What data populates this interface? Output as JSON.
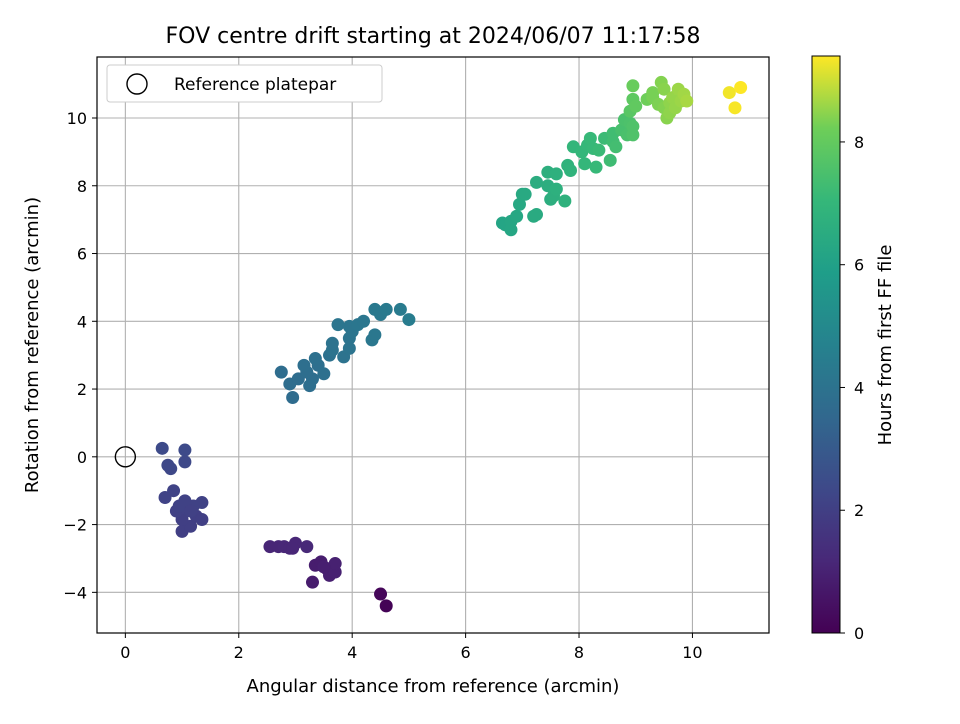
{
  "chart_data": {
    "type": "scatter",
    "title": "FOV centre drift starting at 2024/06/07 11:17:58",
    "xlabel": "Angular distance from reference (arcmin)",
    "ylabel": "Rotation from reference (arcmin)",
    "xlim": [
      -0.5,
      11.35
    ],
    "ylim": [
      -5.2,
      11.8
    ],
    "xticks": [
      0,
      2,
      4,
      6,
      8,
      10
    ],
    "yticks": [
      -4,
      -2,
      0,
      2,
      4,
      6,
      8,
      10
    ],
    "grid": true,
    "colormap": "viridis",
    "colorbar": {
      "label": "Hours from first FF file",
      "range": [
        0,
        9.4
      ],
      "ticks": [
        0,
        2,
        4,
        6,
        8
      ]
    },
    "legend": {
      "placement": "top-left",
      "entries": [
        {
          "label": "Reference platepar",
          "marker": "open-circle",
          "x": 0,
          "y": 0
        }
      ]
    },
    "points": [
      {
        "x": 4.6,
        "y": -4.4,
        "c": 0.05
      },
      {
        "x": 4.5,
        "y": -4.05,
        "c": 0.15
      },
      {
        "x": 3.3,
        "y": -3.7,
        "c": 0.8
      },
      {
        "x": 3.35,
        "y": -3.2,
        "c": 0.85
      },
      {
        "x": 3.45,
        "y": -3.1,
        "c": 0.85
      },
      {
        "x": 3.55,
        "y": -3.3,
        "c": 0.9
      },
      {
        "x": 3.6,
        "y": -3.5,
        "c": 0.9
      },
      {
        "x": 3.7,
        "y": -3.4,
        "c": 0.95
      },
      {
        "x": 3.7,
        "y": -3.15,
        "c": 0.95
      },
      {
        "x": 3.5,
        "y": -3.25,
        "c": 0.9
      },
      {
        "x": 2.55,
        "y": -2.65,
        "c": 1.1
      },
      {
        "x": 2.7,
        "y": -2.65,
        "c": 1.1
      },
      {
        "x": 2.8,
        "y": -2.65,
        "c": 1.15
      },
      {
        "x": 2.9,
        "y": -2.7,
        "c": 1.15
      },
      {
        "x": 3.0,
        "y": -2.55,
        "c": 1.15
      },
      {
        "x": 2.95,
        "y": -2.7,
        "c": 1.15
      },
      {
        "x": 3.2,
        "y": -2.65,
        "c": 1.2
      },
      {
        "x": 1.0,
        "y": -2.2,
        "c": 2.0
      },
      {
        "x": 1.15,
        "y": -2.05,
        "c": 2.0
      },
      {
        "x": 1.0,
        "y": -1.85,
        "c": 2.0
      },
      {
        "x": 1.25,
        "y": -1.75,
        "c": 2.0
      },
      {
        "x": 1.35,
        "y": -1.85,
        "c": 2.0
      },
      {
        "x": 0.9,
        "y": -1.6,
        "c": 2.05
      },
      {
        "x": 1.1,
        "y": -1.55,
        "c": 2.05
      },
      {
        "x": 1.2,
        "y": -1.45,
        "c": 2.1
      },
      {
        "x": 0.95,
        "y": -1.45,
        "c": 2.1
      },
      {
        "x": 1.05,
        "y": -1.3,
        "c": 2.1
      },
      {
        "x": 1.35,
        "y": -1.35,
        "c": 2.1
      },
      {
        "x": 0.7,
        "y": -1.2,
        "c": 2.15
      },
      {
        "x": 0.85,
        "y": -1.0,
        "c": 2.15
      },
      {
        "x": 1.15,
        "y": -1.6,
        "c": 2.05
      },
      {
        "x": 0.75,
        "y": -0.25,
        "c": 2.3
      },
      {
        "x": 0.8,
        "y": -0.35,
        "c": 2.3
      },
      {
        "x": 1.05,
        "y": -0.15,
        "c": 2.35
      },
      {
        "x": 0.65,
        "y": 0.25,
        "c": 2.4
      },
      {
        "x": 1.05,
        "y": 0.2,
        "c": 2.4
      },
      {
        "x": 2.95,
        "y": 1.75,
        "c": 3.7
      },
      {
        "x": 2.9,
        "y": 2.15,
        "c": 3.75
      },
      {
        "x": 3.05,
        "y": 2.3,
        "c": 3.75
      },
      {
        "x": 2.75,
        "y": 2.5,
        "c": 3.75
      },
      {
        "x": 3.25,
        "y": 2.1,
        "c": 3.8
      },
      {
        "x": 3.3,
        "y": 2.3,
        "c": 3.8
      },
      {
        "x": 3.2,
        "y": 2.5,
        "c": 3.8
      },
      {
        "x": 3.15,
        "y": 2.7,
        "c": 3.85
      },
      {
        "x": 3.4,
        "y": 2.7,
        "c": 3.85
      },
      {
        "x": 3.35,
        "y": 2.9,
        "c": 3.9
      },
      {
        "x": 3.5,
        "y": 2.45,
        "c": 3.9
      },
      {
        "x": 3.6,
        "y": 3.0,
        "c": 3.95
      },
      {
        "x": 3.65,
        "y": 3.15,
        "c": 4.0
      },
      {
        "x": 3.65,
        "y": 3.35,
        "c": 4.0
      },
      {
        "x": 3.85,
        "y": 2.95,
        "c": 4.0
      },
      {
        "x": 3.95,
        "y": 3.2,
        "c": 4.05
      },
      {
        "x": 3.95,
        "y": 3.5,
        "c": 4.05
      },
      {
        "x": 4.0,
        "y": 3.7,
        "c": 4.1
      },
      {
        "x": 3.95,
        "y": 3.85,
        "c": 4.1
      },
      {
        "x": 3.75,
        "y": 3.9,
        "c": 4.1
      },
      {
        "x": 4.1,
        "y": 3.9,
        "c": 4.15
      },
      {
        "x": 4.2,
        "y": 4.0,
        "c": 4.15
      },
      {
        "x": 4.35,
        "y": 3.45,
        "c": 4.2
      },
      {
        "x": 4.4,
        "y": 3.6,
        "c": 4.2
      },
      {
        "x": 4.4,
        "y": 4.35,
        "c": 4.3
      },
      {
        "x": 4.5,
        "y": 4.2,
        "c": 4.3
      },
      {
        "x": 4.6,
        "y": 4.35,
        "c": 4.35
      },
      {
        "x": 4.85,
        "y": 4.35,
        "c": 4.4
      },
      {
        "x": 5.0,
        "y": 4.05,
        "c": 4.45
      },
      {
        "x": 6.65,
        "y": 6.9,
        "c": 6.2
      },
      {
        "x": 6.7,
        "y": 6.85,
        "c": 6.2
      },
      {
        "x": 6.8,
        "y": 6.7,
        "c": 6.25
      },
      {
        "x": 6.8,
        "y": 6.95,
        "c": 6.25
      },
      {
        "x": 6.9,
        "y": 7.1,
        "c": 6.3
      },
      {
        "x": 6.95,
        "y": 7.45,
        "c": 6.35
      },
      {
        "x": 7.0,
        "y": 7.75,
        "c": 6.4
      },
      {
        "x": 7.05,
        "y": 7.75,
        "c": 6.4
      },
      {
        "x": 7.2,
        "y": 7.1,
        "c": 6.45
      },
      {
        "x": 7.25,
        "y": 7.15,
        "c": 6.45
      },
      {
        "x": 7.25,
        "y": 8.1,
        "c": 6.55
      },
      {
        "x": 7.45,
        "y": 8.0,
        "c": 6.6
      },
      {
        "x": 7.5,
        "y": 7.6,
        "c": 6.6
      },
      {
        "x": 7.45,
        "y": 8.4,
        "c": 6.65
      },
      {
        "x": 7.55,
        "y": 7.7,
        "c": 6.65
      },
      {
        "x": 7.6,
        "y": 8.35,
        "c": 6.7
      },
      {
        "x": 7.6,
        "y": 7.9,
        "c": 6.7
      },
      {
        "x": 7.75,
        "y": 7.55,
        "c": 6.75
      },
      {
        "x": 7.8,
        "y": 8.6,
        "c": 6.8
      },
      {
        "x": 7.85,
        "y": 8.45,
        "c": 6.85
      },
      {
        "x": 7.9,
        "y": 9.15,
        "c": 6.95
      },
      {
        "x": 8.05,
        "y": 9.0,
        "c": 7.0
      },
      {
        "x": 8.1,
        "y": 8.65,
        "c": 7.0
      },
      {
        "x": 8.15,
        "y": 9.2,
        "c": 7.05
      },
      {
        "x": 8.2,
        "y": 9.4,
        "c": 7.1
      },
      {
        "x": 8.25,
        "y": 9.1,
        "c": 7.1
      },
      {
        "x": 8.3,
        "y": 8.55,
        "c": 7.1
      },
      {
        "x": 8.35,
        "y": 9.05,
        "c": 7.15
      },
      {
        "x": 8.45,
        "y": 9.4,
        "c": 7.2
      },
      {
        "x": 8.55,
        "y": 8.75,
        "c": 7.25
      },
      {
        "x": 8.6,
        "y": 9.3,
        "c": 7.3
      },
      {
        "x": 8.6,
        "y": 9.55,
        "c": 7.3
      },
      {
        "x": 8.65,
        "y": 9.15,
        "c": 7.35
      },
      {
        "x": 8.75,
        "y": 9.65,
        "c": 7.45
      },
      {
        "x": 8.8,
        "y": 9.95,
        "c": 7.5
      },
      {
        "x": 8.85,
        "y": 9.5,
        "c": 7.5
      },
      {
        "x": 8.9,
        "y": 9.85,
        "c": 7.55
      },
      {
        "x": 8.95,
        "y": 9.75,
        "c": 7.6
      },
      {
        "x": 8.95,
        "y": 9.5,
        "c": 7.6
      },
      {
        "x": 8.9,
        "y": 10.2,
        "c": 7.8
      },
      {
        "x": 8.95,
        "y": 10.55,
        "c": 7.9
      },
      {
        "x": 9.0,
        "y": 10.35,
        "c": 7.95
      },
      {
        "x": 8.95,
        "y": 10.95,
        "c": 8.1
      },
      {
        "x": 9.2,
        "y": 10.55,
        "c": 8.2
      },
      {
        "x": 9.3,
        "y": 10.6,
        "c": 8.3
      },
      {
        "x": 9.3,
        "y": 10.75,
        "c": 8.3
      },
      {
        "x": 9.4,
        "y": 10.4,
        "c": 8.35
      },
      {
        "x": 9.45,
        "y": 11.05,
        "c": 8.4
      },
      {
        "x": 9.5,
        "y": 10.3,
        "c": 8.4
      },
      {
        "x": 9.5,
        "y": 10.85,
        "c": 8.45
      },
      {
        "x": 9.55,
        "y": 10.0,
        "c": 8.45
      },
      {
        "x": 9.6,
        "y": 10.15,
        "c": 8.5
      },
      {
        "x": 9.6,
        "y": 10.45,
        "c": 8.5
      },
      {
        "x": 9.65,
        "y": 10.6,
        "c": 8.55
      },
      {
        "x": 9.7,
        "y": 10.3,
        "c": 8.55
      },
      {
        "x": 9.75,
        "y": 10.85,
        "c": 8.6
      },
      {
        "x": 9.8,
        "y": 10.5,
        "c": 8.6
      },
      {
        "x": 9.85,
        "y": 10.7,
        "c": 8.65
      },
      {
        "x": 9.9,
        "y": 10.5,
        "c": 8.7
      },
      {
        "x": 10.65,
        "y": 10.75,
        "c": 9.3
      },
      {
        "x": 10.75,
        "y": 10.3,
        "c": 9.35
      },
      {
        "x": 10.85,
        "y": 10.9,
        "c": 9.4
      }
    ]
  }
}
